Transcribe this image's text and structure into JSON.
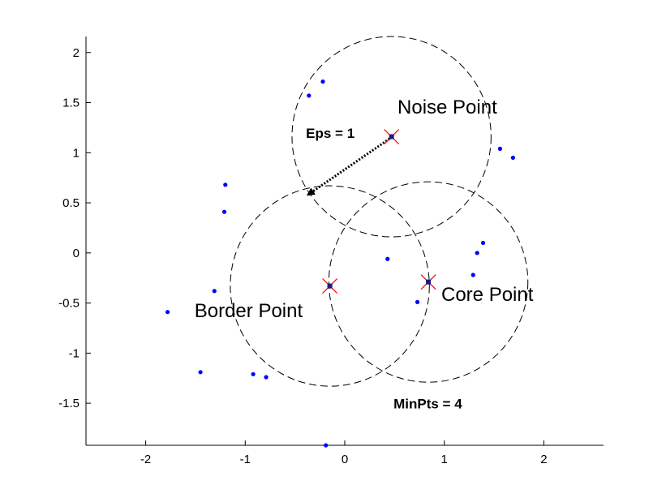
{
  "chart_data": {
    "type": "scatter",
    "title": "",
    "xlabel": "",
    "ylabel": "",
    "xlim": [
      -2.6,
      2.6
    ],
    "ylim": [
      -1.92,
      2.16
    ],
    "grid": false,
    "x_ticks": [
      -2,
      -1,
      0,
      1,
      2
    ],
    "y_ticks": [
      -1.5,
      -1,
      -0.5,
      0,
      0.5,
      1,
      1.5,
      2
    ],
    "x_tick_labels": [
      "-2",
      "-1",
      "0",
      "1",
      "2"
    ],
    "y_tick_labels": [
      "-1.5",
      "-1",
      "-0.5",
      "0",
      "0.5",
      "1",
      "1.5",
      "2"
    ],
    "point_color": "#0000ff",
    "marker_color": "#ff0000",
    "circle_color": "#000000",
    "points": [
      {
        "x": -0.22,
        "y": 1.71
      },
      {
        "x": -0.36,
        "y": 1.57
      },
      {
        "x": -1.2,
        "y": 0.68
      },
      {
        "x": -1.21,
        "y": 0.41
      },
      {
        "x": -1.31,
        "y": -0.38
      },
      {
        "x": -1.78,
        "y": -0.59
      },
      {
        "x": -1.45,
        "y": -1.19
      },
      {
        "x": -0.92,
        "y": -1.21
      },
      {
        "x": -0.79,
        "y": -1.24
      },
      {
        "x": -0.19,
        "y": -1.92
      },
      {
        "x": 0.43,
        "y": -0.06
      },
      {
        "x": 0.73,
        "y": -0.49
      },
      {
        "x": 1.56,
        "y": 1.04
      },
      {
        "x": 1.69,
        "y": 0.95
      },
      {
        "x": 1.39,
        "y": 0.1
      },
      {
        "x": 1.33,
        "y": 0.0
      },
      {
        "x": 1.29,
        "y": -0.22
      }
    ],
    "special_points": [
      {
        "name": "noise",
        "x": 0.47,
        "y": 1.16
      },
      {
        "name": "border",
        "x": -0.15,
        "y": -0.33
      },
      {
        "name": "core",
        "x": 0.84,
        "y": -0.29
      }
    ],
    "circles": [
      {
        "cx": 0.47,
        "cy": 1.16,
        "r": 1
      },
      {
        "cx": -0.15,
        "cy": -0.33,
        "r": 1
      },
      {
        "cx": 0.84,
        "cy": -0.29,
        "r": 1
      }
    ],
    "eps_arrow": {
      "from": [
        0.45,
        1.14
      ],
      "to": [
        -0.37,
        0.58
      ]
    },
    "annotations": {
      "noise": {
        "text": "Noise Point",
        "x": 0.53,
        "y": 1.39
      },
      "core": {
        "text": "Core Point",
        "x": 0.97,
        "y": -0.48
      },
      "border": {
        "text": "Border Point",
        "x": -1.51,
        "y": -0.64
      },
      "eps": {
        "text": "Eps = 1",
        "x": -0.39,
        "y": 1.15
      },
      "minpts": {
        "text": "MinPts = 4",
        "x": 0.49,
        "y": -1.55
      }
    }
  }
}
